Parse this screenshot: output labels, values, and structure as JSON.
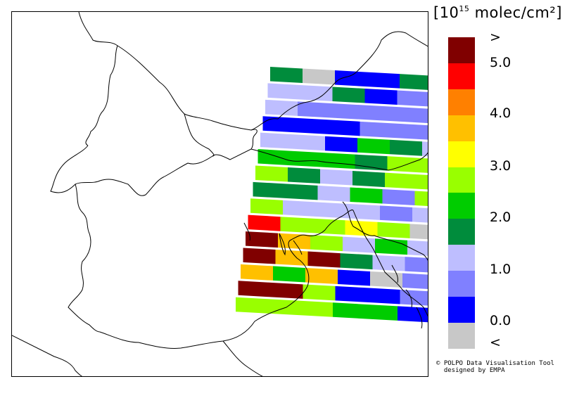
{
  "legend": {
    "unit_prefix": "[10",
    "unit_exponent": "15",
    "unit_suffix": " molec/cm²]",
    "bins": [
      {
        "color": "#800000"
      },
      {
        "color": "#ff0000"
      },
      {
        "color": "#ff8000"
      },
      {
        "color": "#ffc000"
      },
      {
        "color": "#ffff00"
      },
      {
        "color": "#99ff00"
      },
      {
        "color": "#00cc00"
      },
      {
        "color": "#008c3c"
      },
      {
        "color": "#bebeff"
      },
      {
        "color": "#8080ff"
      },
      {
        "color": "#0000ff"
      },
      {
        "color": "#c8c8c8"
      }
    ],
    "tick_labels": [
      ">",
      "5.0",
      "4.0",
      "3.0",
      "2.0",
      "1.0",
      "0.0",
      "<"
    ]
  },
  "credits": {
    "line1": "© POLPO Data Visualisation Tool",
    "line2": "  designed by EMPA"
  },
  "swath_rows": [
    [
      "#008c3c",
      "#c8c8c8",
      "#0000ff",
      "#0000ff",
      "#008c3c",
      "#008c3c"
    ],
    [
      "#bebeff",
      "#bebeff",
      "#008c3c",
      "#0000ff",
      "#8080ff",
      "#008c3c"
    ],
    [
      "#bebeff",
      "#8080ff",
      "#8080ff",
      "#8080ff",
      "#8080ff",
      "#8080ff"
    ],
    [
      "#0000ff",
      "#0000ff",
      "#0000ff",
      "#8080ff",
      "#8080ff",
      "#8080ff"
    ],
    [
      "#bebeff",
      "#bebeff",
      "#0000ff",
      "#00cc00",
      "#008c3c",
      "#bebeff"
    ],
    [
      "#00cc00",
      "#00cc00",
      "#00cc00",
      "#008c3c",
      "#99ff00",
      "#99ff00"
    ],
    [
      "#99ff00",
      "#008c3c",
      "#bebeff",
      "#008c3c",
      "#99ff00",
      "#99ff00"
    ],
    [
      "#008c3c",
      "#008c3c",
      "#bebeff",
      "#00cc00",
      "#8080ff",
      "#99ff00"
    ],
    [
      "#99ff00",
      "#bebeff",
      "#bebeff",
      "#bebeff",
      "#8080ff",
      "#bebeff"
    ],
    [
      "#ff0000",
      "#99ff00",
      "#99ff00",
      "#ffff00",
      "#99ff00",
      "#c8c8c8"
    ],
    [
      "#800000",
      "#ffc000",
      "#99ff00",
      "#bebeff",
      "#00cc00",
      "#bebeff"
    ],
    [
      "#800000",
      "#ffc000",
      "#800000",
      "#008c3c",
      "#bebeff",
      "#8080ff"
    ],
    [
      "#ffc000",
      "#00cc00",
      "#ffc000",
      "#0000ff",
      "#c8c8c8",
      "#8080ff"
    ],
    [
      "#800000",
      "#800000",
      "#99ff00",
      "#0000ff",
      "#0000ff",
      "#8080ff"
    ],
    [
      "#99ff00",
      "#99ff00",
      "#99ff00",
      "#00cc00",
      "#00cc00",
      "#0000ff"
    ]
  ]
}
